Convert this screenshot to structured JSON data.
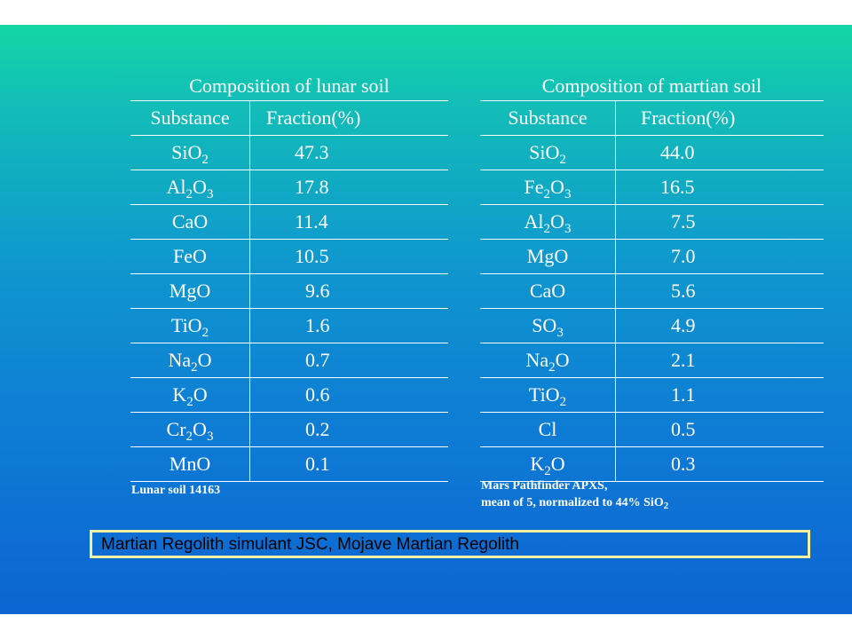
{
  "lunar": {
    "caption": "Composition of lunar soil",
    "headers": [
      "Substance",
      "Fraction(%)"
    ],
    "rows": [
      {
        "substance": "SiO₂",
        "fraction": "47.3"
      },
      {
        "substance": "Al₂O₃",
        "fraction": "17.8"
      },
      {
        "substance": "CaO",
        "fraction": "11.4"
      },
      {
        "substance": "FeO",
        "fraction": "10.5"
      },
      {
        "substance": "MgO",
        "fraction": "9.6"
      },
      {
        "substance": "TiO₂",
        "fraction": "1.6"
      },
      {
        "substance": "Na₂O",
        "fraction": "0.7"
      },
      {
        "substance": "K₂O",
        "fraction": "0.6"
      },
      {
        "substance": "Cr₂O₃",
        "fraction": "0.2"
      },
      {
        "substance": "MnO",
        "fraction": "0.1"
      }
    ],
    "note": "Lunar soil 14163"
  },
  "martian": {
    "caption": "Composition of martian soil",
    "headers": [
      "Substance",
      "Fraction(%)"
    ],
    "rows": [
      {
        "substance": "SiO₂",
        "fraction": "44.0"
      },
      {
        "substance": "Fe₂O₃",
        "fraction": "16.5"
      },
      {
        "substance": "Al₂O₃",
        "fraction": "7.5"
      },
      {
        "substance": "MgO",
        "fraction": "7.0"
      },
      {
        "substance": "CaO",
        "fraction": "5.6"
      },
      {
        "substance": "SO₃",
        "fraction": "4.9"
      },
      {
        "substance": "Na₂O",
        "fraction": "2.1"
      },
      {
        "substance": "TiO₂",
        "fraction": "1.1"
      },
      {
        "substance": "Cl",
        "fraction": "0.5"
      },
      {
        "substance": "K₂O",
        "fraction": "0.3"
      }
    ],
    "note_line1": "Mars Pathfinder APXS,",
    "note_line2": "mean of 5, normalized to 44% SiO₂"
  },
  "banner": {
    "text": "Martian Regolith simulant JSC, Mojave Martian Regolith"
  },
  "colors": {
    "gradient_top": "#14d6a4",
    "gradient_bottom": "#0c64d2",
    "banner_border": "#f4f0a0"
  }
}
